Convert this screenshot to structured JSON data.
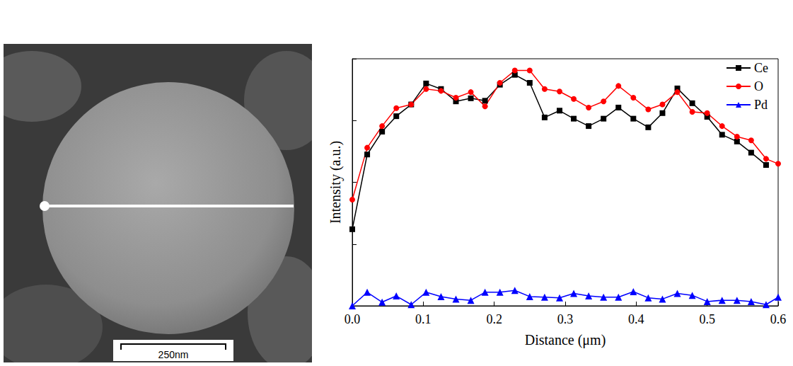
{
  "chart_data": {
    "type": "line",
    "x_label": "Distance (μm)",
    "y_label": "Intensity (a.u.)",
    "x": [
      0,
      0.021,
      0.042,
      0.062,
      0.083,
      0.104,
      0.125,
      0.146,
      0.167,
      0.187,
      0.208,
      0.229,
      0.25,
      0.271,
      0.292,
      0.312,
      0.333,
      0.354,
      0.375,
      0.396,
      0.417,
      0.437,
      0.458,
      0.479,
      0.5,
      0.521,
      0.542,
      0.562,
      0.583,
      0.6
    ],
    "series": [
      {
        "name": "Ce",
        "color": "#000000",
        "marker": "square",
        "values": [
          1.24,
          2.45,
          2.82,
          3.07,
          3.26,
          3.6,
          3.51,
          3.31,
          3.36,
          3.32,
          3.58,
          3.74,
          3.61,
          3.05,
          3.16,
          3.03,
          2.91,
          3.03,
          3.21,
          3.03,
          2.89,
          3.12,
          3.52,
          3.28,
          3.06,
          2.77,
          2.66,
          2.48,
          2.28,
          null
        ]
      },
      {
        "name": "O",
        "color": "#ff0000",
        "marker": "circle",
        "values": [
          1.72,
          2.56,
          2.91,
          3.2,
          3.26,
          3.51,
          3.48,
          3.37,
          3.46,
          3.23,
          3.61,
          3.81,
          3.81,
          3.51,
          3.47,
          3.35,
          3.21,
          3.31,
          3.56,
          3.37,
          3.18,
          3.26,
          3.46,
          3.14,
          3.12,
          2.91,
          2.74,
          2.68,
          2.38,
          2.3
        ]
      },
      {
        "name": "Pd",
        "color": "#0000ff",
        "marker": "triangle",
        "values": [
          0,
          0.22,
          0.06,
          0.16,
          0.02,
          0.22,
          0.15,
          0.11,
          0.09,
          0.22,
          0.22,
          0.25,
          0.15,
          0.14,
          0.13,
          0.2,
          0.16,
          0.14,
          0.14,
          0.23,
          0.13,
          0.11,
          0.2,
          0.17,
          0.07,
          0.09,
          0.09,
          0.07,
          0.02,
          0.14
        ]
      }
    ],
    "xlim": [
      0,
      0.6
    ],
    "xticks": [
      {
        "value": 0,
        "label": "0.0"
      },
      0.1,
      0.2,
      0.3,
      0.4,
      0.5,
      0.6
    ],
    "ylim": [
      0,
      4
    ],
    "yticks": [
      0,
      1,
      2,
      3,
      4
    ],
    "tick_labels": "x",
    "grid": false,
    "legend": "top-right"
  },
  "micrograph": {
    "scale_bar": "250nm"
  }
}
